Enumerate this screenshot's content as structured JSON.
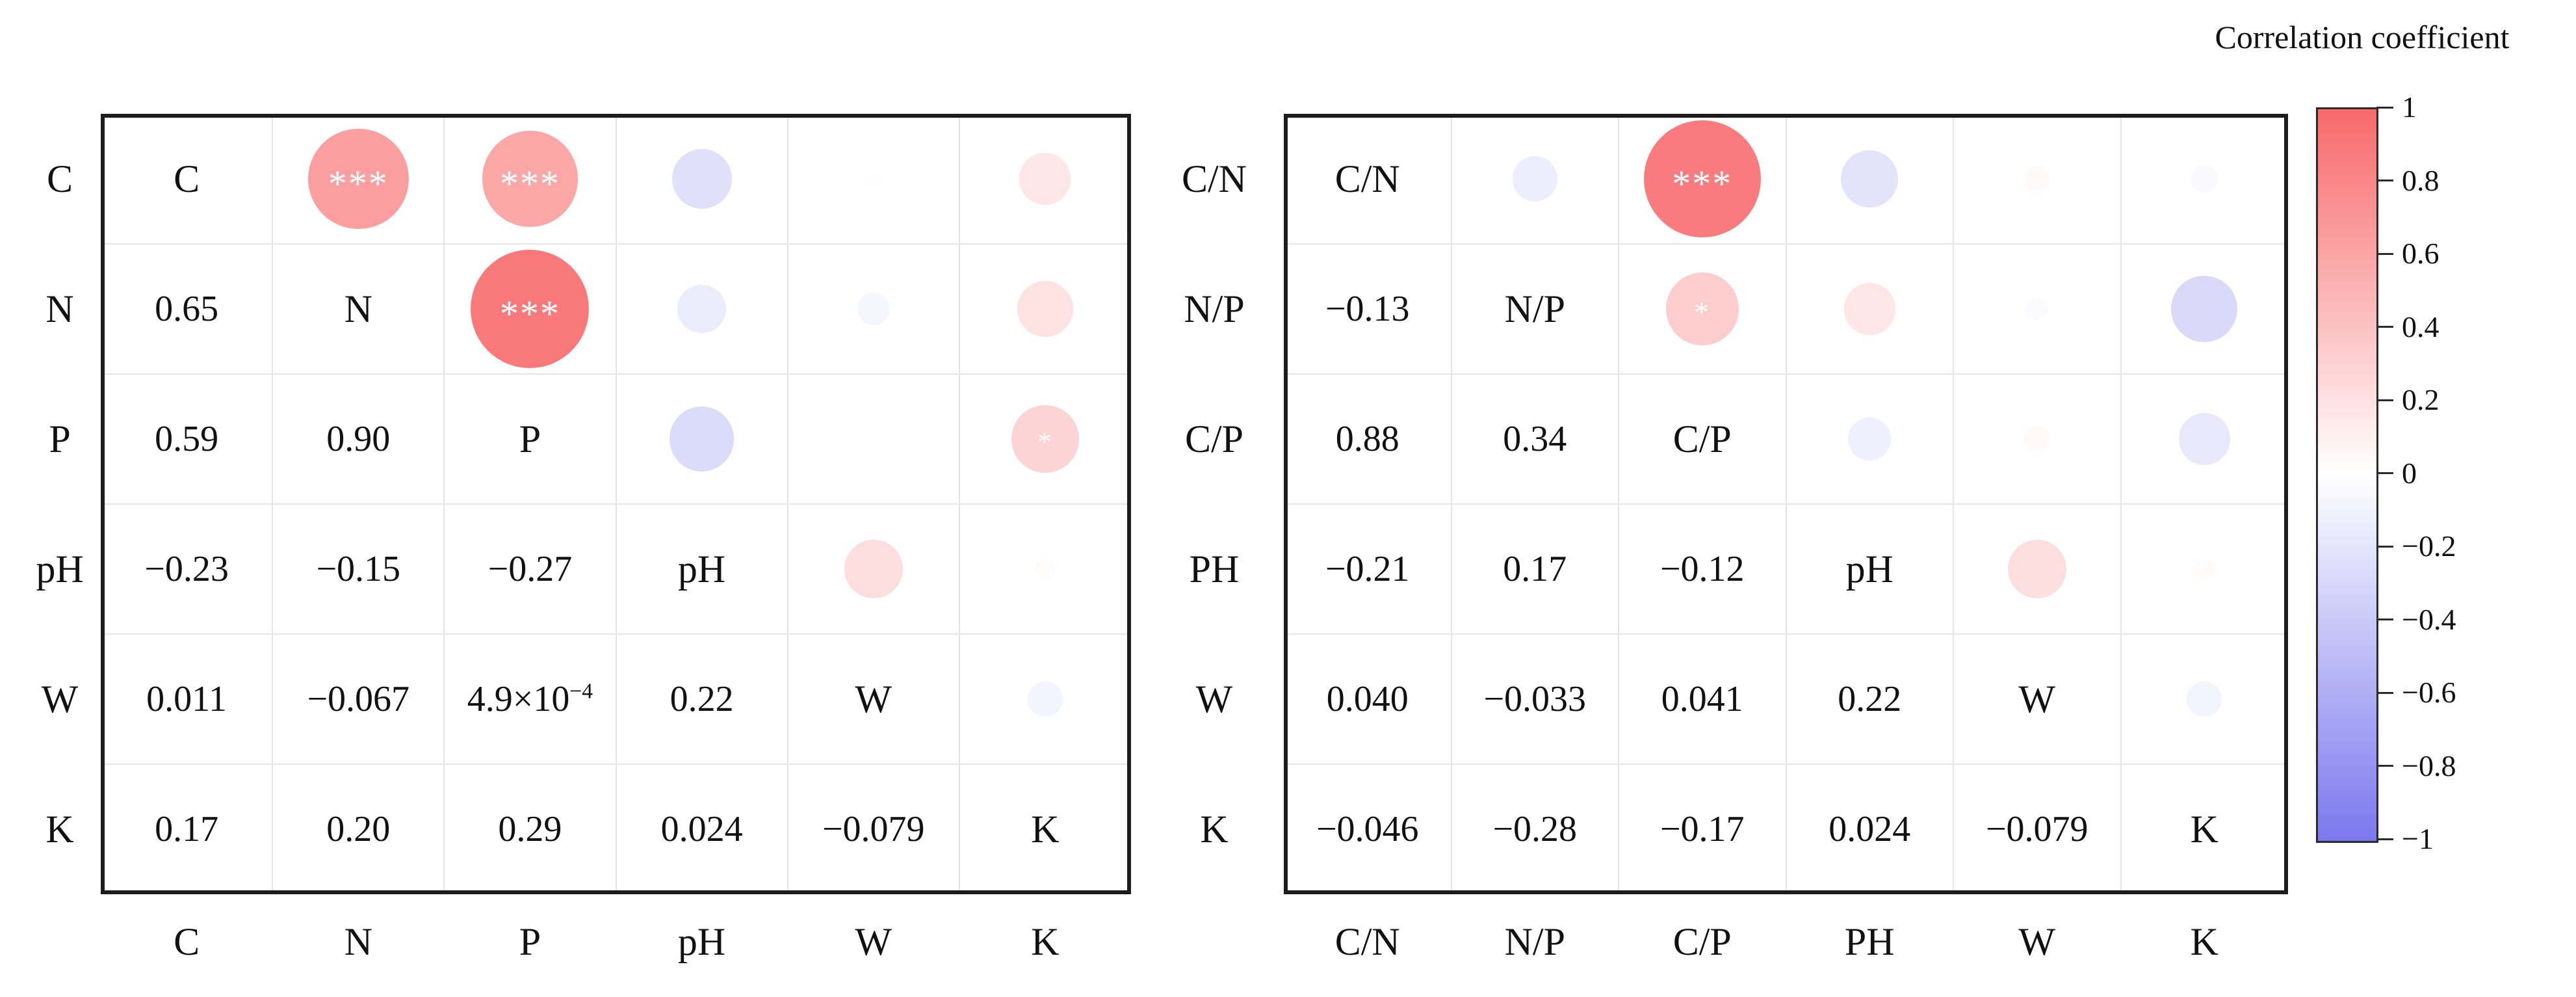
{
  "figure": {
    "background": "#ffffff"
  },
  "legend": {
    "title": "Correlation coefficient",
    "ticks": [
      "1",
      "0.8",
      "0.6",
      "0.4",
      "0.2",
      "0",
      "−0.2",
      "−0.4",
      "−0.6",
      "−0.8",
      "−1"
    ],
    "min": -1,
    "max": 1,
    "color_positive": "#f8696b",
    "color_zero": "#ffffff",
    "color_negative": "#7a78ee"
  },
  "chart_data": [
    {
      "type": "correlation-matrix",
      "panel": "left",
      "layout_note": "upper triangle = circles sized by sqrt(|r|) and colored by r, lower triangle = printed r values, diagonal = variable names",
      "variables_axis": [
        "C",
        "N",
        "P",
        "pH",
        "W",
        "K"
      ],
      "variables_diagonal": [
        "C",
        "N",
        "P",
        "pH",
        "W",
        "K"
      ],
      "pairs": [
        {
          "i": 0,
          "j": 1,
          "r": 0.65,
          "label": "0.65",
          "sig": "***"
        },
        {
          "i": 0,
          "j": 2,
          "r": 0.59,
          "label": "0.59",
          "sig": "***"
        },
        {
          "i": 0,
          "j": 3,
          "r": -0.23,
          "label": "−0.23",
          "sig": ""
        },
        {
          "i": 0,
          "j": 4,
          "r": 0.011,
          "label": "0.011",
          "sig": ""
        },
        {
          "i": 0,
          "j": 5,
          "r": 0.17,
          "label": "0.17",
          "sig": ""
        },
        {
          "i": 1,
          "j": 2,
          "r": 0.9,
          "label": "0.90",
          "sig": "***"
        },
        {
          "i": 1,
          "j": 3,
          "r": -0.15,
          "label": "−0.15",
          "sig": ""
        },
        {
          "i": 1,
          "j": 4,
          "r": -0.067,
          "label": "−0.067",
          "sig": ""
        },
        {
          "i": 1,
          "j": 5,
          "r": 0.2,
          "label": "0.20",
          "sig": ""
        },
        {
          "i": 2,
          "j": 3,
          "r": -0.27,
          "label": "−0.27",
          "sig": ""
        },
        {
          "i": 2,
          "j": 4,
          "r": 0.00049,
          "label": "4.9×10",
          "label_sup": "−4",
          "sig": ""
        },
        {
          "i": 2,
          "j": 5,
          "r": 0.29,
          "label": "0.29",
          "sig": "*"
        },
        {
          "i": 3,
          "j": 4,
          "r": 0.22,
          "label": "0.22",
          "sig": ""
        },
        {
          "i": 3,
          "j": 5,
          "r": 0.024,
          "label": "0.024",
          "sig": ""
        },
        {
          "i": 4,
          "j": 5,
          "r": -0.079,
          "label": "−0.079",
          "sig": ""
        }
      ]
    },
    {
      "type": "correlation-matrix",
      "panel": "right",
      "layout_note": "upper triangle = circles sized by sqrt(|r|) and colored by r, lower triangle = printed r values, diagonal = variable names",
      "variables_axis": [
        "C/N",
        "N/P",
        "C/P",
        "PH",
        "W",
        "K"
      ],
      "variables_diagonal": [
        "C/N",
        "N/P",
        "C/P",
        "pH",
        "W",
        "K"
      ],
      "pairs": [
        {
          "i": 0,
          "j": 1,
          "r": -0.13,
          "label": "−0.13",
          "sig": ""
        },
        {
          "i": 0,
          "j": 2,
          "r": 0.88,
          "label": "0.88",
          "sig": "***"
        },
        {
          "i": 0,
          "j": 3,
          "r": -0.21,
          "label": "−0.21",
          "sig": ""
        },
        {
          "i": 0,
          "j": 4,
          "r": 0.04,
          "label": "0.040",
          "sig": ""
        },
        {
          "i": 0,
          "j": 5,
          "r": -0.046,
          "label": "−0.046",
          "sig": ""
        },
        {
          "i": 1,
          "j": 2,
          "r": 0.34,
          "label": "0.34",
          "sig": "*"
        },
        {
          "i": 1,
          "j": 3,
          "r": 0.17,
          "label": "0.17",
          "sig": ""
        },
        {
          "i": 1,
          "j": 4,
          "r": -0.033,
          "label": "−0.033",
          "sig": ""
        },
        {
          "i": 1,
          "j": 5,
          "r": -0.28,
          "label": "−0.28",
          "sig": ""
        },
        {
          "i": 2,
          "j": 3,
          "r": -0.12,
          "label": "−0.12",
          "sig": ""
        },
        {
          "i": 2,
          "j": 4,
          "r": 0.041,
          "label": "0.041",
          "sig": ""
        },
        {
          "i": 2,
          "j": 5,
          "r": -0.17,
          "label": "−0.17",
          "sig": ""
        },
        {
          "i": 3,
          "j": 4,
          "r": 0.22,
          "label": "0.22",
          "sig": ""
        },
        {
          "i": 3,
          "j": 5,
          "r": 0.024,
          "label": "0.024",
          "sig": ""
        },
        {
          "i": 4,
          "j": 5,
          "r": -0.079,
          "label": "−0.079",
          "sig": ""
        }
      ]
    }
  ]
}
